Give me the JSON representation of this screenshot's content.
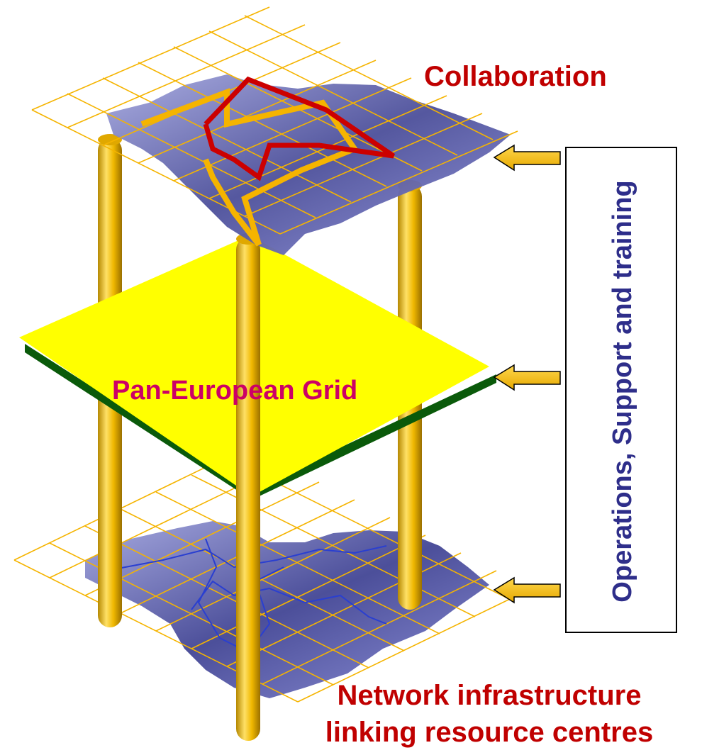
{
  "labels": {
    "collaboration": "Collaboration",
    "pan_european_grid": "Pan-European Grid",
    "network_line1": "Network infrastructure",
    "network_line2": "linking resource centres",
    "side_box": "Operations,  Support and training"
  },
  "colors": {
    "collaboration_text": "#c00000",
    "grid_text": "#cc0066",
    "network_text": "#c00000",
    "side_text": "#2e2e8a",
    "grid_lines": "#f5b400",
    "grid_plane": "#ffff00",
    "pillars": "#e6b000",
    "map_land": "#7b7fc4",
    "collab_orange": "#f5b400",
    "collab_red": "#cc0000",
    "network_lines": "#2a3fd0",
    "arrow_fill": "#f5c400"
  }
}
